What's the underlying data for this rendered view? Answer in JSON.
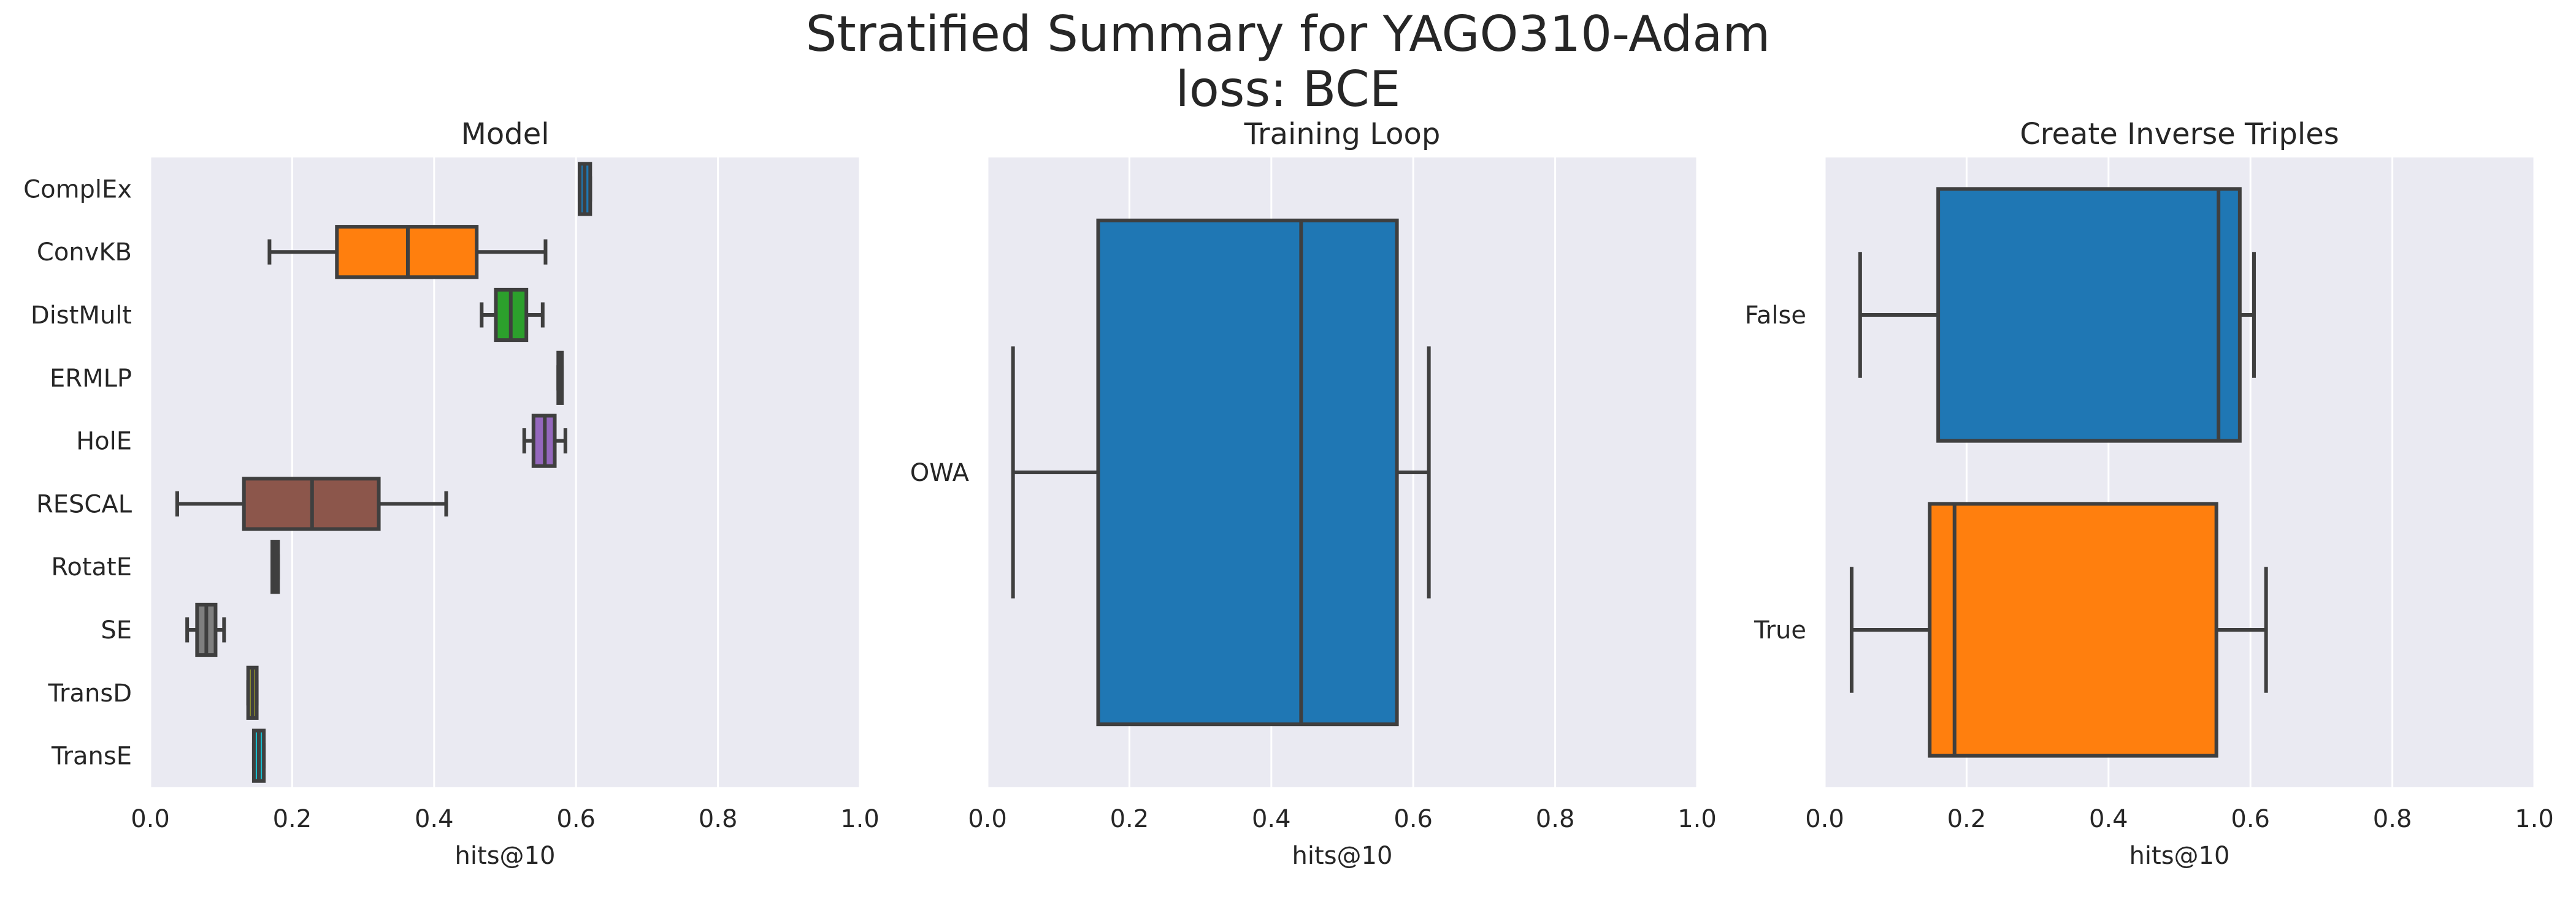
{
  "figure": {
    "title_line1": "Stratified Summary for YAGO310-Adam",
    "title_line2": "loss: BCE"
  },
  "style": {
    "panel_bg": "#EAEAF2",
    "grid": "#FFFFFF",
    "line": "#3F3F3F",
    "palette": [
      "#1F77B4",
      "#FF7F0E",
      "#2CA02C",
      "#D62728",
      "#9467BD",
      "#8C564B",
      "#E377C2",
      "#7F7F7F",
      "#BCBD22",
      "#17BECF"
    ]
  },
  "chart_data": [
    {
      "type": "box",
      "orientation": "horizontal",
      "title": "Model",
      "xlabel": "hits@10",
      "ylabel": "",
      "xlim": [
        0.0,
        1.0
      ],
      "xticks": [
        "0.0",
        "0.2",
        "0.4",
        "0.6",
        "0.8",
        "1.0"
      ],
      "grid": true,
      "categories": [
        "ComplEx",
        "ConvKB",
        "DistMult",
        "ERMLP",
        "HolE",
        "RESCAL",
        "RotatE",
        "SE",
        "TransD",
        "TransE"
      ],
      "boxes": [
        {
          "whislo": 0.605,
          "q1": 0.605,
          "med": 0.612,
          "q3": 0.62,
          "whishi": 0.62
        },
        {
          "whislo": 0.168,
          "q1": 0.263,
          "med": 0.363,
          "q3": 0.46,
          "whishi": 0.557
        },
        {
          "whislo": 0.467,
          "q1": 0.487,
          "med": 0.508,
          "q3": 0.53,
          "whishi": 0.553
        },
        {
          "whislo": 0.575,
          "q1": 0.575,
          "med": 0.578,
          "q3": 0.58,
          "whishi": 0.58
        },
        {
          "whislo": 0.527,
          "q1": 0.54,
          "med": 0.556,
          "q3": 0.57,
          "whishi": 0.585
        },
        {
          "whislo": 0.038,
          "q1": 0.132,
          "med": 0.228,
          "q3": 0.322,
          "whishi": 0.417
        },
        {
          "whislo": 0.172,
          "q1": 0.172,
          "med": 0.176,
          "q3": 0.18,
          "whishi": 0.18
        },
        {
          "whislo": 0.052,
          "q1": 0.066,
          "med": 0.079,
          "q3": 0.092,
          "whishi": 0.104
        },
        {
          "whislo": 0.138,
          "q1": 0.138,
          "med": 0.144,
          "q3": 0.15,
          "whishi": 0.15
        },
        {
          "whislo": 0.146,
          "q1": 0.146,
          "med": 0.153,
          "q3": 0.16,
          "whishi": 0.16
        }
      ]
    },
    {
      "type": "box",
      "orientation": "horizontal",
      "title": "Training Loop",
      "xlabel": "hits@10",
      "ylabel": "",
      "xlim": [
        0.0,
        1.0
      ],
      "xticks": [
        "0.0",
        "0.2",
        "0.4",
        "0.6",
        "0.8",
        "1.0"
      ],
      "grid": true,
      "categories": [
        "OWA"
      ],
      "boxes": [
        {
          "whislo": 0.036,
          "q1": 0.156,
          "med": 0.442,
          "q3": 0.577,
          "whishi": 0.622
        }
      ]
    },
    {
      "type": "box",
      "orientation": "horizontal",
      "title": "Create Inverse Triples",
      "xlabel": "hits@10",
      "ylabel": "",
      "xlim": [
        0.0,
        1.0
      ],
      "xticks": [
        "0.0",
        "0.2",
        "0.4",
        "0.6",
        "0.8",
        "1.0"
      ],
      "grid": true,
      "categories": [
        "False",
        "True"
      ],
      "boxes": [
        {
          "whislo": 0.05,
          "q1": 0.16,
          "med": 0.555,
          "q3": 0.585,
          "whishi": 0.605
        },
        {
          "whislo": 0.038,
          "q1": 0.148,
          "med": 0.183,
          "q3": 0.552,
          "whishi": 0.622
        }
      ]
    }
  ]
}
